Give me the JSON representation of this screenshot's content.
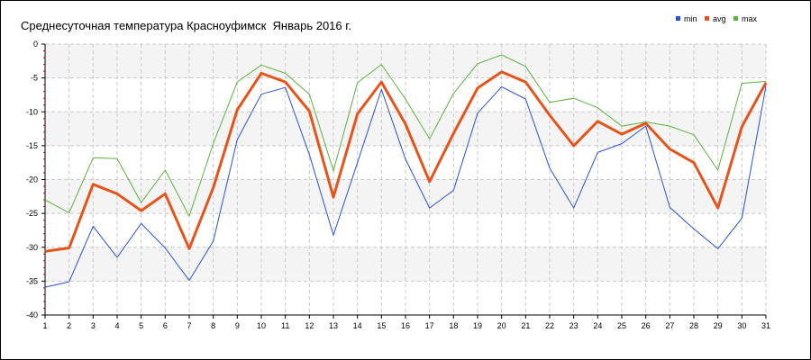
{
  "chart_data": {
    "type": "line",
    "title": "Среднесуточная температура Красноуфимск  Январь 2016 г.",
    "xlabel": "",
    "ylabel": "",
    "x": [
      1,
      2,
      3,
      4,
      5,
      6,
      7,
      8,
      9,
      10,
      11,
      12,
      13,
      14,
      15,
      16,
      17,
      18,
      19,
      20,
      21,
      22,
      23,
      24,
      25,
      26,
      27,
      28,
      29,
      30,
      31
    ],
    "x_ticks": [
      "1",
      "2",
      "3",
      "4",
      "5",
      "6",
      "7",
      "8",
      "9",
      "10",
      "11",
      "12",
      "13",
      "14",
      "15",
      "16",
      "17",
      "18",
      "19",
      "20",
      "21",
      "22",
      "23",
      "24",
      "25",
      "26",
      "27",
      "28",
      "29",
      "30",
      "31"
    ],
    "ylim": [
      -40,
      0
    ],
    "y_ticks": [
      "0",
      "-5",
      "-10",
      "-15",
      "-20",
      "-25",
      "-30",
      "-35",
      "-40"
    ],
    "grid": true,
    "legend_position": "top-right",
    "series": [
      {
        "name": "min",
        "color": "#2a52d6",
        "values": [
          -35.9,
          -35.1,
          -26.9,
          -31.5,
          -26.5,
          -30.1,
          -34.9,
          -29.1,
          -14.1,
          -7.4,
          -6.4,
          -16.3,
          -28.2,
          -17.5,
          -6.7,
          -17.0,
          -24.2,
          -21.6,
          -10.2,
          -6.3,
          -8.1,
          -18.3,
          -24.2,
          -16.0,
          -14.7,
          -12.1,
          -24.1,
          -27.3,
          -30.2,
          -25.7,
          -6.2
        ]
      },
      {
        "name": "avg",
        "color": "#e6541c",
        "values": [
          -30.6,
          -30.1,
          -20.7,
          -22.1,
          -24.6,
          -22.1,
          -30.2,
          -21.2,
          -9.7,
          -4.3,
          -5.6,
          -9.9,
          -22.6,
          -10.3,
          -5.6,
          -11.8,
          -20.3,
          -13.2,
          -6.5,
          -4.1,
          -5.6,
          -10.5,
          -15.0,
          -11.4,
          -13.3,
          -11.7,
          -15.5,
          -17.5,
          -24.2,
          -12.2,
          -5.7
        ]
      },
      {
        "name": "max",
        "color": "#5cb33d",
        "values": [
          -23.0,
          -24.9,
          -16.8,
          -16.9,
          -23.4,
          -18.6,
          -25.4,
          -14.7,
          -5.6,
          -3.1,
          -4.3,
          -7.4,
          -18.7,
          -5.7,
          -3.0,
          -8.1,
          -14.0,
          -7.3,
          -2.9,
          -1.6,
          -3.3,
          -8.6,
          -8.0,
          -9.4,
          -12.1,
          -11.5,
          -12.1,
          -13.4,
          -18.6,
          -5.8,
          -5.5
        ]
      }
    ]
  }
}
